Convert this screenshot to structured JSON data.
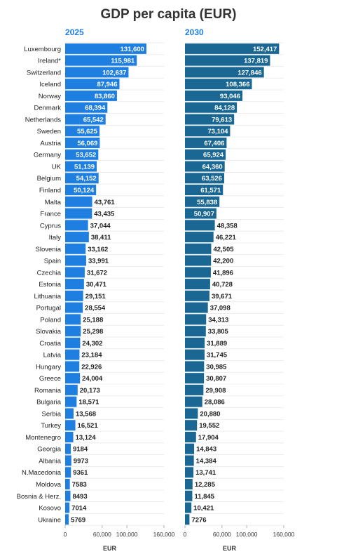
{
  "chart_data": {
    "type": "bar",
    "title": "GDP per capita (EUR)",
    "categories": [
      "Luxembourg",
      "Ireland*",
      "Switzerland",
      "Iceland",
      "Norway",
      "Denmark",
      "Netherlands",
      "Sweden",
      "Austria",
      "Germany",
      "UK",
      "Belgium",
      "Finland",
      "Malta",
      "France",
      "Cyprus",
      "Italy",
      "Slovenia",
      "Spain",
      "Czechia",
      "Estonia",
      "Lithuania",
      "Portugal",
      "Poland",
      "Slovakia",
      "Croatia",
      "Latvia",
      "Hungary",
      "Greece",
      "Romania",
      "Bulgaria",
      "Serbia",
      "Turkey",
      "Montenegro",
      "Georgia",
      "Albania",
      "N.Macedonia",
      "Moldova",
      "Bosnia & Herz.",
      "Kosovo",
      "Ukraine"
    ],
    "panels": [
      {
        "name": "2025",
        "color": "#1f7fe0",
        "xlabel": "EUR",
        "xlim": [
          0,
          160000
        ],
        "ticks": [
          0,
          60000,
          100000,
          160000
        ],
        "tick_labels": [
          "0",
          "60,000",
          "100,000",
          "160,000"
        ],
        "values": [
          131600,
          115981,
          102637,
          87946,
          83860,
          68394,
          65542,
          55625,
          56069,
          53652,
          51139,
          54152,
          50124,
          43761,
          43435,
          37044,
          38411,
          33162,
          33991,
          31672,
          30471,
          29151,
          28554,
          25188,
          25298,
          24302,
          23184,
          22926,
          24004,
          20173,
          18571,
          13568,
          16521,
          13124,
          9184,
          9973,
          9361,
          7583,
          8493,
          7014,
          5769
        ],
        "labels": [
          "131,600",
          "115,981",
          "102,637",
          "87,946",
          "83,860",
          "68,394",
          "65,542",
          "55,625",
          "56,069",
          "53,652",
          "51,139",
          "54,152",
          "50,124",
          "43,761",
          "43,435",
          "37,044",
          "38,411",
          "33,162",
          "33,991",
          "31,672",
          "30,471",
          "29,151",
          "28,554",
          "25,188",
          "25,298",
          "24,302",
          "23,184",
          "22,926",
          "24,004",
          "20,173",
          "18,571",
          "13,568",
          "16,521",
          "13,124",
          "9184",
          "9973",
          "9361",
          "7583",
          "8493",
          "7014",
          "5769"
        ]
      },
      {
        "name": "2030",
        "color": "#1a6794",
        "xlabel": "EUR",
        "xlim": [
          0,
          160000
        ],
        "ticks": [
          0,
          60000,
          100000,
          160000
        ],
        "tick_labels": [
          "0",
          "60,000",
          "100,000",
          "160,000"
        ],
        "values": [
          152417,
          137819,
          127846,
          108366,
          93046,
          84128,
          79613,
          73104,
          67406,
          65924,
          64360,
          63526,
          61571,
          55838,
          50907,
          48358,
          46221,
          42505,
          42200,
          41896,
          40728,
          39671,
          37098,
          34313,
          33805,
          31889,
          31745,
          30985,
          30807,
          29908,
          28086,
          20880,
          19552,
          17904,
          14843,
          14384,
          13741,
          12285,
          11845,
          10421,
          7276
        ],
        "labels": [
          "152,417",
          "137,819",
          "127,846",
          "108,366",
          "93,046",
          "84,128",
          "79,613",
          "73,104",
          "67,406",
          "65,924",
          "64,360",
          "63,526",
          "61,571",
          "55,838",
          "50,907",
          "48,358",
          "46,221",
          "42,505",
          "42,200",
          "41,896",
          "40,728",
          "39,671",
          "37,098",
          "34,313",
          "33,805",
          "31,889",
          "31,745",
          "30,985",
          "30,807",
          "29,908",
          "28,086",
          "20,880",
          "19,552",
          "17,904",
          "14,843",
          "14,384",
          "13,741",
          "12,285",
          "11,845",
          "10,421",
          "7276"
        ]
      }
    ],
    "legend": "none",
    "grid": "horizontal-row-separators"
  }
}
